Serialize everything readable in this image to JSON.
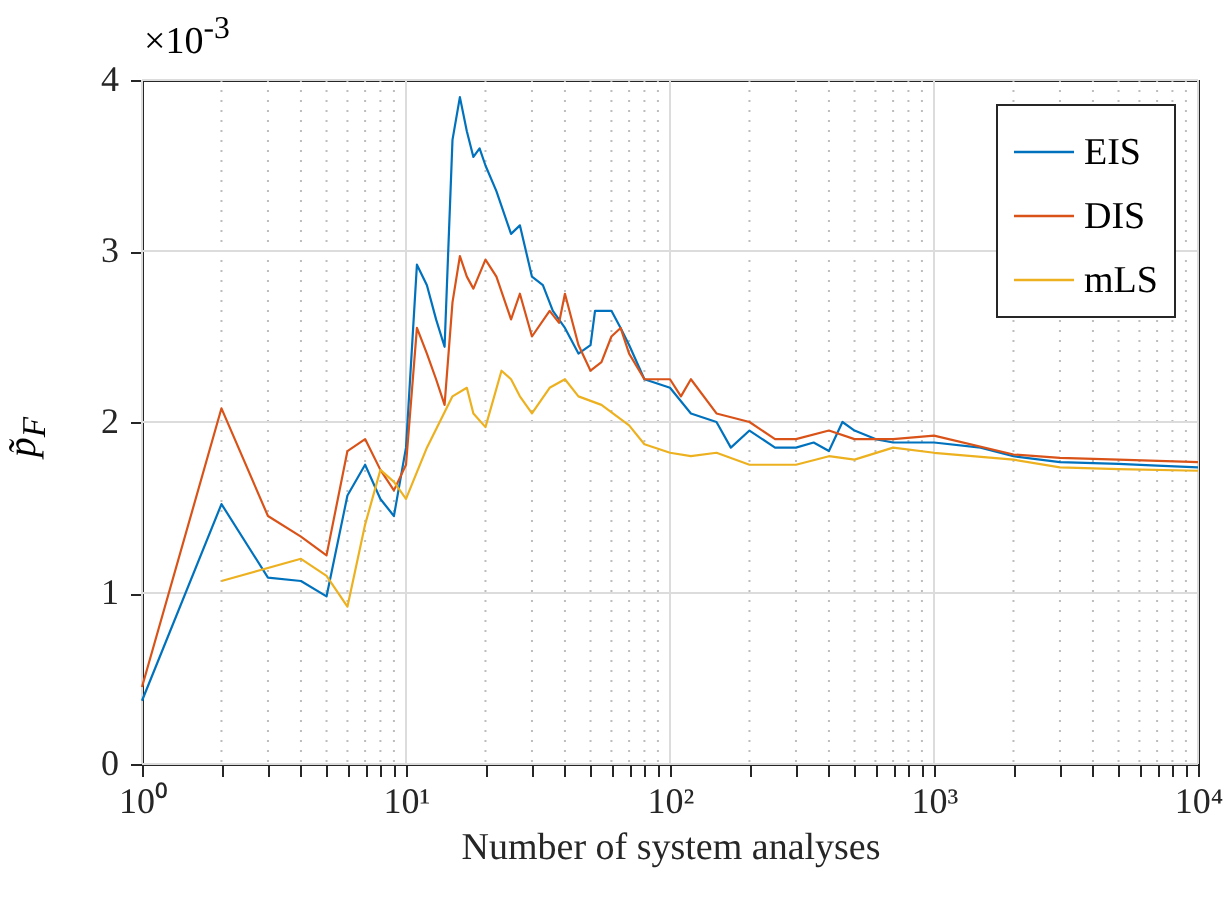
{
  "chart_data": {
    "type": "line",
    "xlabel": "Number of system analyses",
    "ylabel": "p̃$_{F}$",
    "annotations": [
      "×10$^{-3}$"
    ],
    "log": "x",
    "grid": true,
    "legend": "top right",
    "line_style": "solid",
    "marker": "none",
    "xlim": [
      1,
      10000
    ],
    "xticks": [
      {
        "value": 1,
        "label": "10⁰"
      },
      {
        "value": 2,
        "label": null
      },
      {
        "value": 3,
        "label": null
      },
      {
        "value": 4,
        "label": null
      },
      {
        "value": 5,
        "label": null
      },
      {
        "value": 6,
        "label": null
      },
      {
        "value": 7,
        "label": null
      },
      {
        "value": 8,
        "label": null
      },
      {
        "value": 9,
        "label": null
      },
      {
        "value": 10,
        "label": "10¹"
      },
      {
        "value": 20,
        "label": null
      },
      {
        "value": 30,
        "label": null
      },
      {
        "value": 40,
        "label": null
      },
      {
        "value": 50,
        "label": null
      },
      {
        "value": 60,
        "label": null
      },
      {
        "value": 70,
        "label": null
      },
      {
        "value": 80,
        "label": null
      },
      {
        "value": 90,
        "label": null
      },
      {
        "value": 100,
        "label": "10²"
      },
      {
        "value": 200,
        "label": null
      },
      {
        "value": 300,
        "label": null
      },
      {
        "value": 400,
        "label": null
      },
      {
        "value": 500,
        "label": null
      },
      {
        "value": 600,
        "label": null
      },
      {
        "value": 700,
        "label": null
      },
      {
        "value": 800,
        "label": null
      },
      {
        "value": 900,
        "label": null
      },
      {
        "value": 1000,
        "label": "10³"
      },
      {
        "value": 2000,
        "label": null
      },
      {
        "value": 3000,
        "label": null
      },
      {
        "value": 4000,
        "label": null
      },
      {
        "value": 5000,
        "label": null
      },
      {
        "value": 6000,
        "label": null
      },
      {
        "value": 7000,
        "label": null
      },
      {
        "value": 8000,
        "label": null
      },
      {
        "value": 9000,
        "label": null
      },
      {
        "value": 10000,
        "label": "10⁴"
      }
    ],
    "ylim": [
      0,
      4
    ],
    "yticks": [
      0,
      1,
      2,
      3,
      4
    ],
    "series": [
      {
        "name": "EIS",
        "color": "#0072bd",
        "x": [
          1,
          2,
          3,
          4,
          5,
          6,
          7,
          8,
          9,
          10,
          11,
          12,
          13,
          14,
          15,
          16,
          17,
          18,
          19,
          20,
          22,
          25,
          27,
          30,
          33,
          36,
          40,
          45,
          50,
          52,
          60,
          65,
          70,
          80,
          100,
          120,
          150,
          170,
          200,
          250,
          300,
          350,
          400,
          450,
          500,
          600,
          700,
          1000,
          1500,
          2000,
          3000,
          5000,
          7000,
          10000
        ],
        "values": [
          0.37,
          1.52,
          1.09,
          1.07,
          0.98,
          1.57,
          1.75,
          1.55,
          1.45,
          1.85,
          2.92,
          2.8,
          2.6,
          2.44,
          3.65,
          3.9,
          3.7,
          3.55,
          3.6,
          3.5,
          3.35,
          3.1,
          3.15,
          2.85,
          2.8,
          2.65,
          2.55,
          2.4,
          2.45,
          2.65,
          2.65,
          2.55,
          2.45,
          2.25,
          2.2,
          2.05,
          2.0,
          1.85,
          1.95,
          1.85,
          1.85,
          1.88,
          1.83,
          2.0,
          1.95,
          1.9,
          1.88,
          1.88,
          1.85,
          1.8,
          1.765,
          1.755,
          1.745,
          1.735
        ]
      },
      {
        "name": "DIS",
        "color": "#d95319",
        "x": [
          1,
          2,
          3,
          4,
          5,
          6,
          7,
          8,
          9,
          10,
          11,
          12,
          13,
          14,
          15,
          16,
          17,
          18,
          20,
          22,
          25,
          27,
          30,
          35,
          38,
          40,
          45,
          50,
          55,
          60,
          65,
          70,
          80,
          100,
          110,
          120,
          150,
          200,
          250,
          300,
          400,
          500,
          700,
          1000,
          2000,
          3000,
          5000,
          10000
        ],
        "values": [
          0.45,
          2.08,
          1.45,
          1.33,
          1.22,
          1.83,
          1.9,
          1.72,
          1.6,
          1.75,
          2.55,
          2.4,
          2.25,
          2.1,
          2.7,
          2.97,
          2.85,
          2.78,
          2.95,
          2.85,
          2.6,
          2.75,
          2.5,
          2.65,
          2.58,
          2.75,
          2.45,
          2.3,
          2.35,
          2.5,
          2.55,
          2.4,
          2.25,
          2.25,
          2.15,
          2.25,
          2.05,
          2.0,
          1.9,
          1.9,
          1.95,
          1.9,
          1.9,
          1.92,
          1.81,
          1.79,
          1.78,
          1.765
        ]
      },
      {
        "name": "mLS",
        "color": "#edb120",
        "x": [
          2,
          4,
          5,
          6,
          7,
          8,
          9,
          10,
          12,
          15,
          17,
          18,
          20,
          23,
          25,
          27,
          30,
          35,
          40,
          45,
          55,
          70,
          80,
          100,
          120,
          150,
          200,
          300,
          400,
          500,
          700,
          1000,
          2000,
          3000,
          5000,
          10000
        ],
        "values": [
          1.07,
          1.2,
          1.1,
          0.92,
          1.4,
          1.72,
          1.65,
          1.55,
          1.85,
          2.15,
          2.2,
          2.05,
          1.97,
          2.3,
          2.25,
          2.15,
          2.05,
          2.2,
          2.25,
          2.15,
          2.1,
          1.98,
          1.87,
          1.82,
          1.8,
          1.82,
          1.75,
          1.75,
          1.8,
          1.78,
          1.85,
          1.82,
          1.78,
          1.735,
          1.725,
          1.715
        ]
      }
    ]
  }
}
